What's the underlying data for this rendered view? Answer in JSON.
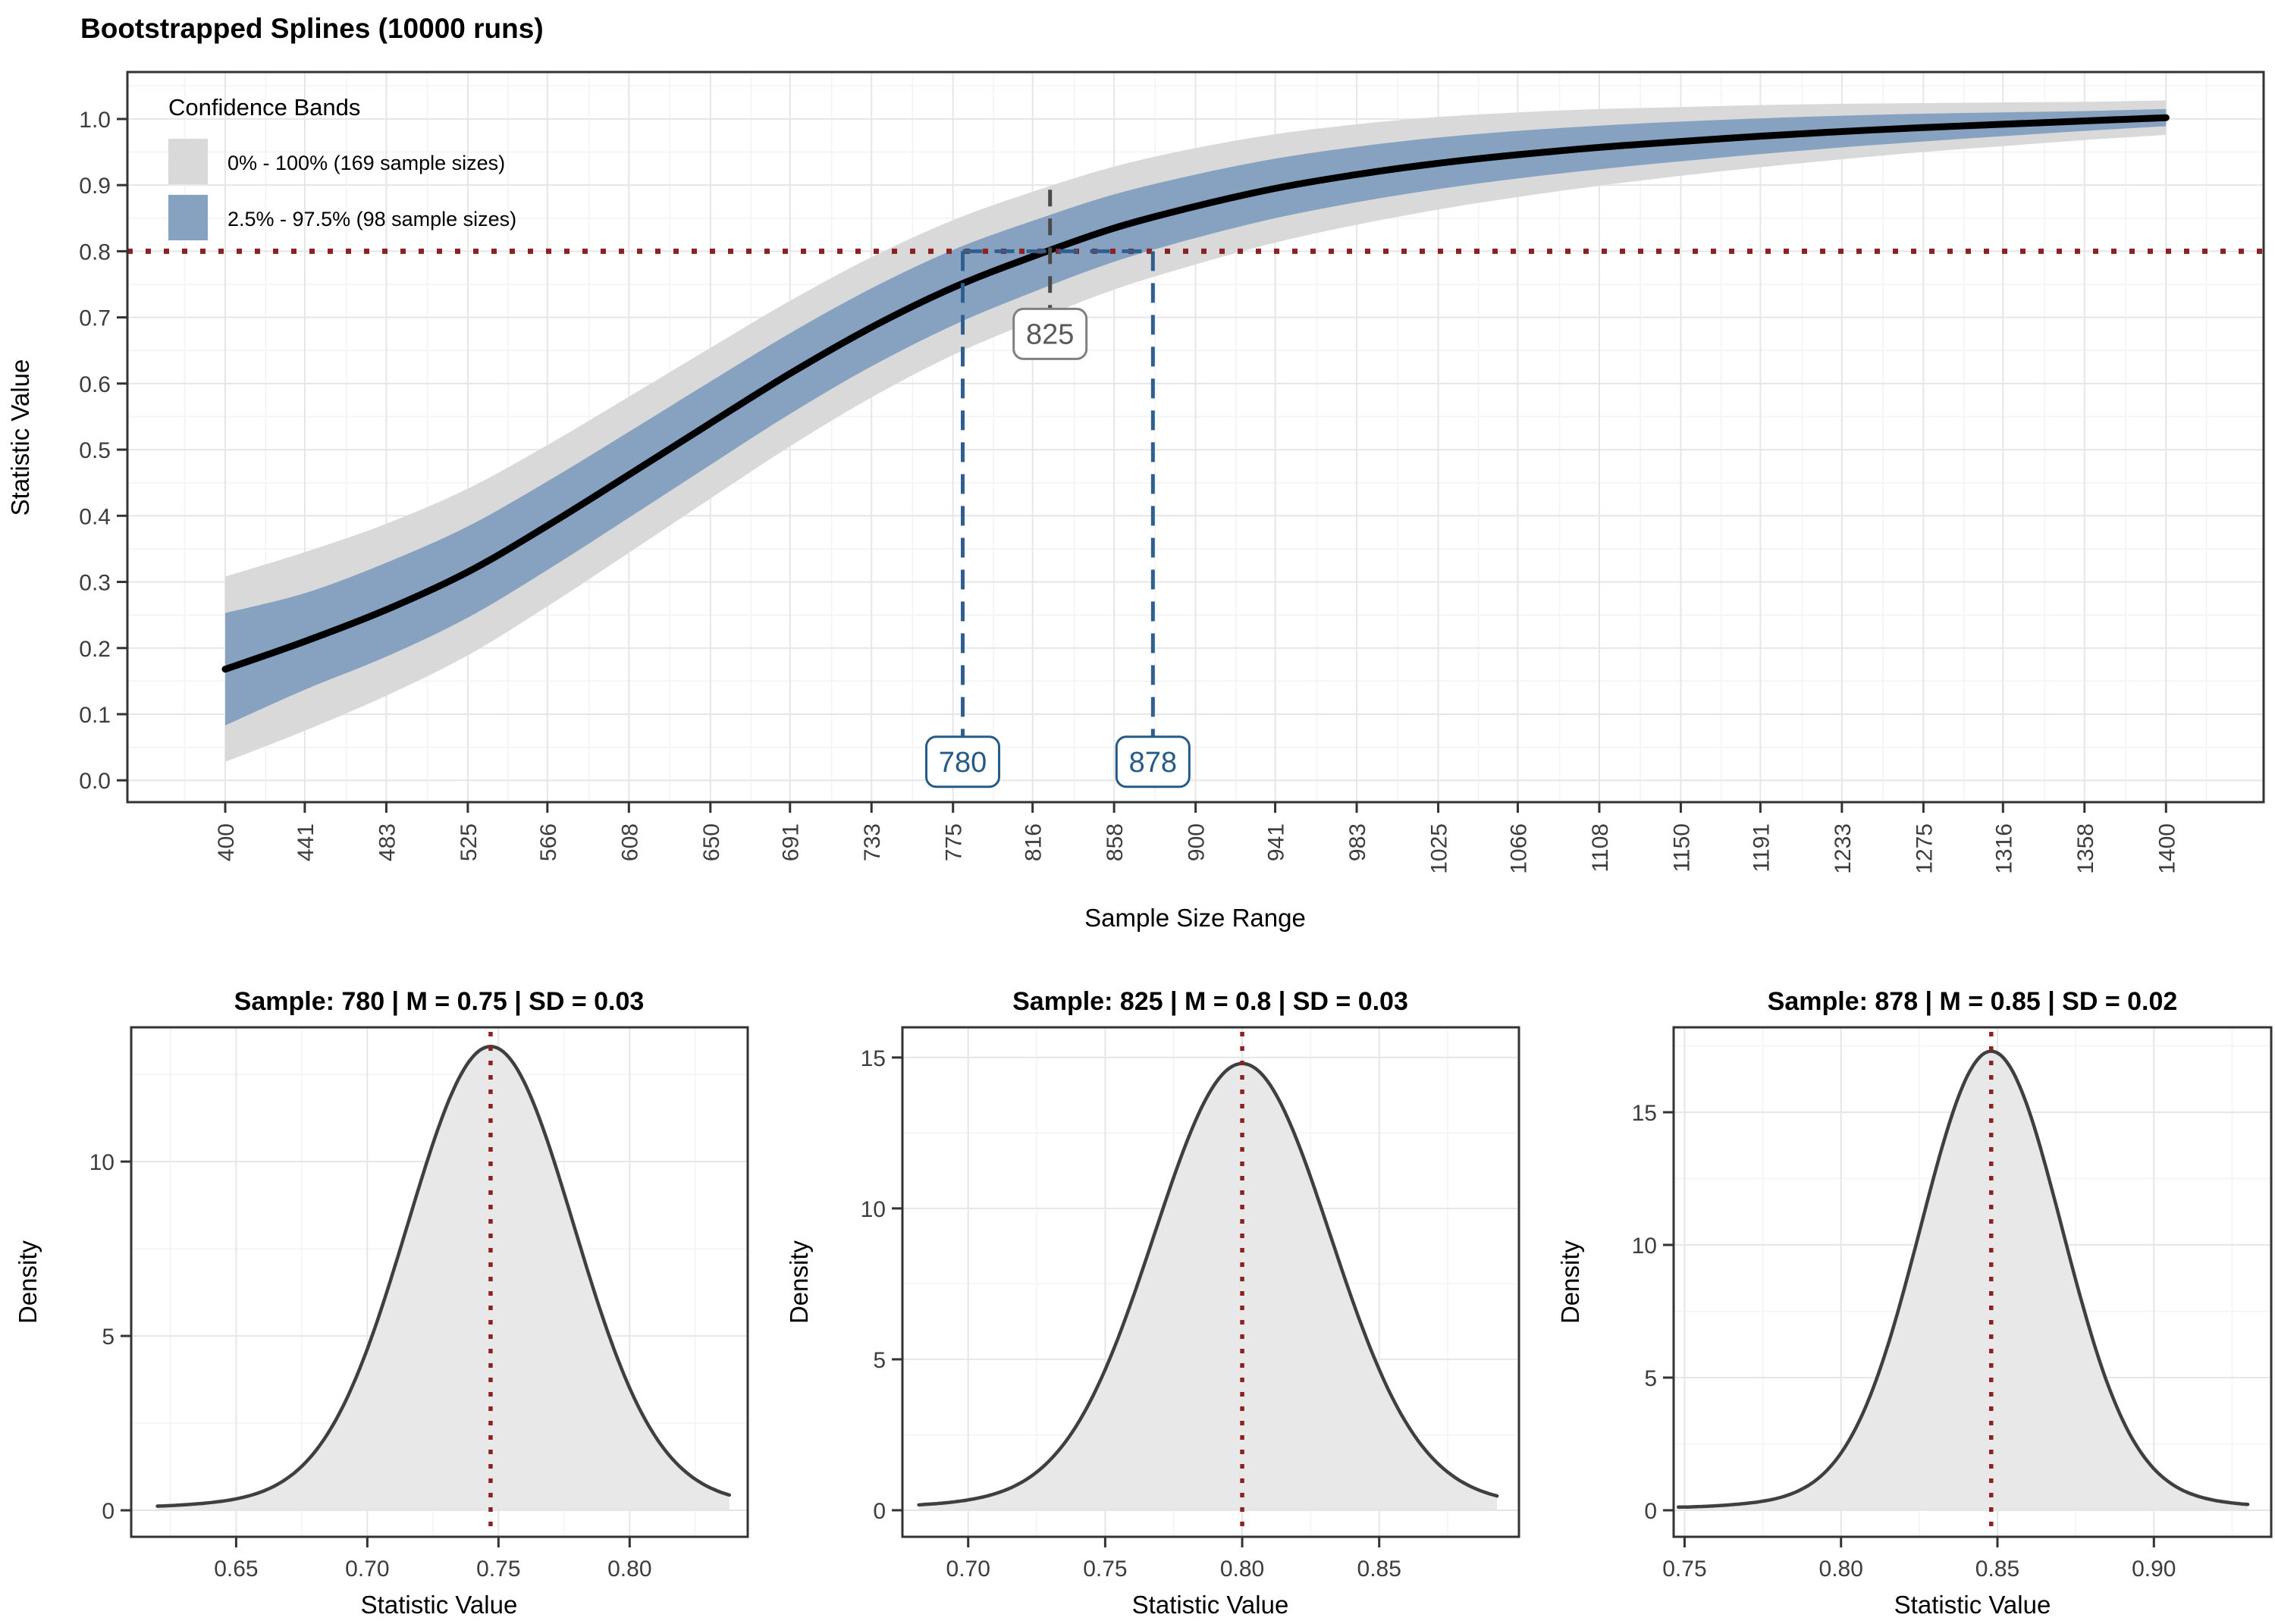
{
  "figure_background": "#ffffff",
  "colors": {
    "band_outer": "#d9d9d9",
    "band_inner": "#87a2c0",
    "spline": "#000000",
    "reference_red": "#8b2121",
    "dash_blue": "#2f5f8f",
    "dash_gray": "#4a4a4a",
    "anno_gray_border": "#808080",
    "anno_blue_border": "#265a87",
    "density_fill": "#e8e8e8",
    "density_stroke": "#3f3f3f",
    "grid_major": "#e6e6e6",
    "grid_minor": "#f3f3f3",
    "panel_border": "#333333",
    "tick_color": "#333333",
    "tick_text": "#3d3d3d"
  },
  "chart_data": [
    {
      "type": "line",
      "title": "Bootstrapped Splines (10000 runs)",
      "xlabel": "Sample Size Range",
      "ylabel": "Statistic Value",
      "legend": {
        "title": "Confidence Bands",
        "position": "top-left inside panel",
        "items": [
          {
            "label": "0% - 100% (169 sample sizes)",
            "color": "#d9d9d9"
          },
          {
            "label": "2.5% - 97.5% (98 sample sizes)",
            "color": "#87a2c0"
          }
        ]
      },
      "x_ticks": [
        400,
        441,
        483,
        525,
        566,
        608,
        650,
        691,
        733,
        775,
        816,
        858,
        900,
        941,
        983,
        1025,
        1066,
        1108,
        1150,
        1191,
        1233,
        1275,
        1316,
        1358,
        1400
      ],
      "x_tick_labels": [
        "400",
        "441",
        "483",
        "525",
        "566",
        "608",
        "650",
        "691",
        "733",
        "775",
        "816",
        "858",
        "900",
        "941",
        "983",
        "1025",
        "1066",
        "1108",
        "1150",
        "1191",
        "1233",
        "1275",
        "1316",
        "1358",
        "1400"
      ],
      "y_ticks": [
        0.0,
        0.1,
        0.2,
        0.3,
        0.4,
        0.5,
        0.6,
        0.7,
        0.8,
        0.9,
        1.0
      ],
      "y_tick_labels": [
        "0.0",
        "0.1",
        "0.2",
        "0.3",
        "0.4",
        "0.5",
        "0.6",
        "0.7",
        "0.8",
        "0.9",
        "1.0"
      ],
      "x_range": [
        349.6,
        1450.3
      ],
      "y_range": [
        -0.033,
        1.071
      ],
      "grid": true,
      "series": {
        "x": [
          400,
          441,
          483,
          525,
          566,
          608,
          650,
          691,
          733,
          775,
          816,
          858,
          900,
          941,
          983,
          1025,
          1066,
          1108,
          1150,
          1191,
          1233,
          1275,
          1316,
          1358,
          1400
        ],
        "mean": [
          0.168,
          0.21,
          0.258,
          0.315,
          0.385,
          0.462,
          0.54,
          0.615,
          0.685,
          0.745,
          0.792,
          0.835,
          0.868,
          0.895,
          0.916,
          0.933,
          0.946,
          0.957,
          0.966,
          0.974,
          0.981,
          0.987,
          0.992,
          0.997,
          1.002
        ],
        "inner_offset": [
          0.085,
          0.073,
          0.071,
          0.069,
          0.067,
          0.065,
          0.063,
          0.061,
          0.059,
          0.057,
          0.054,
          0.051,
          0.048,
          0.045,
          0.042,
          0.039,
          0.036,
          0.033,
          0.03,
          0.027,
          0.024,
          0.021,
          0.018,
          0.015,
          0.013
        ],
        "outer_offset": [
          0.14,
          0.135,
          0.13,
          0.126,
          0.122,
          0.118,
          0.114,
          0.11,
          0.106,
          0.102,
          0.098,
          0.093,
          0.088,
          0.082,
          0.076,
          0.07,
          0.064,
          0.058,
          0.052,
          0.047,
          0.042,
          0.037,
          0.033,
          0.029,
          0.026
        ]
      },
      "reference_line_y": 0.8,
      "annotations": {
        "mean_crossing": {
          "x": 825,
          "label": "825",
          "label_center_y": 0.675,
          "line_from_y": 0.893
        },
        "lower_crossing": {
          "x": 780,
          "label": "780",
          "label_center_y": 0.028,
          "line_from_y": 0.8
        },
        "upper_crossing": {
          "x": 878,
          "label": "878",
          "label_center_y": 0.028,
          "line_from_y": 0.8
        },
        "blue_horizontal_segment": {
          "y": 0.8,
          "x_from": 780,
          "x_to": 878
        }
      }
    },
    {
      "type": "density",
      "title": "Sample: 780 | M = 0.75 | SD = 0.03",
      "sample": 780,
      "M": 0.75,
      "SD": 0.03,
      "xlabel": "Statistic Value",
      "ylabel": "Density",
      "mean": 0.747,
      "sd": 0.0315,
      "peak": 13.3,
      "x_ticks": [
        0.65,
        0.7,
        0.75,
        0.8
      ],
      "x_tick_labels": [
        "0.65",
        "0.70",
        "0.75",
        "0.80"
      ],
      "x_range": [
        0.61,
        0.845
      ],
      "data_range": [
        0.62,
        0.838
      ],
      "y_ticks": [
        0,
        5,
        10
      ],
      "y_tick_labels": [
        "0",
        "5",
        "10"
      ],
      "y_minor": [
        2.5,
        7.5,
        12.5
      ],
      "x_minor": [
        0.625,
        0.675,
        0.725,
        0.775,
        0.825
      ],
      "y_max": 13.85,
      "y_min": -0.76
    },
    {
      "type": "density",
      "title": "Sample: 825 | M = 0.8 | SD = 0.03",
      "sample": 825,
      "M": 0.8,
      "SD": 0.03,
      "xlabel": "Statistic Value",
      "ylabel": "Density",
      "mean": 0.8,
      "sd": 0.032,
      "peak": 14.8,
      "x_ticks": [
        0.7,
        0.75,
        0.8,
        0.85
      ],
      "x_tick_labels": [
        "0.70",
        "0.75",
        "0.80",
        "0.85"
      ],
      "x_range": [
        0.676,
        0.901
      ],
      "data_range": [
        0.682,
        0.893
      ],
      "y_ticks": [
        0,
        5,
        10,
        15
      ],
      "y_tick_labels": [
        "0",
        "5",
        "10",
        "15"
      ],
      "y_minor": [
        2.5,
        7.5,
        12.5
      ],
      "x_minor": [
        0.725,
        0.775,
        0.825,
        0.875
      ],
      "y_max": 16.0,
      "y_min": -0.88
    },
    {
      "type": "density",
      "title": "Sample: 878 | M = 0.85 | SD = 0.02",
      "sample": 878,
      "M": 0.85,
      "SD": 0.02,
      "xlabel": "Statistic Value",
      "ylabel": "Density",
      "mean": 0.848,
      "sd": 0.0225,
      "peak": 17.3,
      "x_ticks": [
        0.75,
        0.8,
        0.85,
        0.9
      ],
      "x_tick_labels": [
        "0.75",
        "0.80",
        "0.85",
        "0.90"
      ],
      "x_range": [
        0.7465,
        0.9375
      ],
      "data_range": [
        0.748,
        0.93
      ],
      "y_ticks": [
        0,
        5,
        10,
        15
      ],
      "y_tick_labels": [
        "0",
        "5",
        "10",
        "15"
      ],
      "y_minor": [
        2.5,
        7.5,
        12.5,
        17.5
      ],
      "x_minor": [
        0.775,
        0.825,
        0.875,
        0.925
      ],
      "y_max": 18.2,
      "y_min": -1.0
    }
  ]
}
